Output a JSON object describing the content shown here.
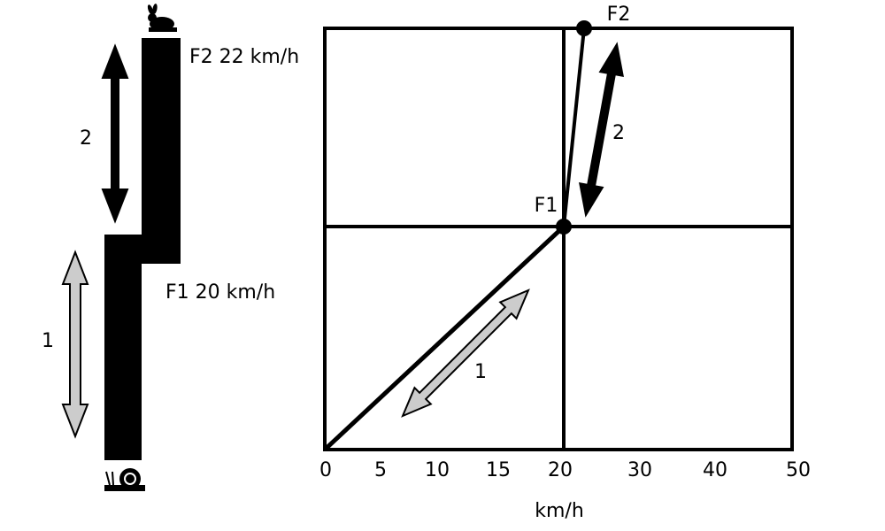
{
  "left_panel": {
    "f2_label": "F2 22 km/h",
    "f1_label": "F1 20 km/h",
    "arrow_1_label": "1",
    "arrow_2_label": "2"
  },
  "right_panel": {
    "x_ticks": [
      "0",
      "5",
      "10",
      "15",
      "20",
      "30",
      "40",
      "50"
    ],
    "x_axis_label": "km/h",
    "point_f1_label": "F1",
    "point_f2_label": "F2",
    "arrow_1_label": "1",
    "arrow_2_label": "2"
  }
}
